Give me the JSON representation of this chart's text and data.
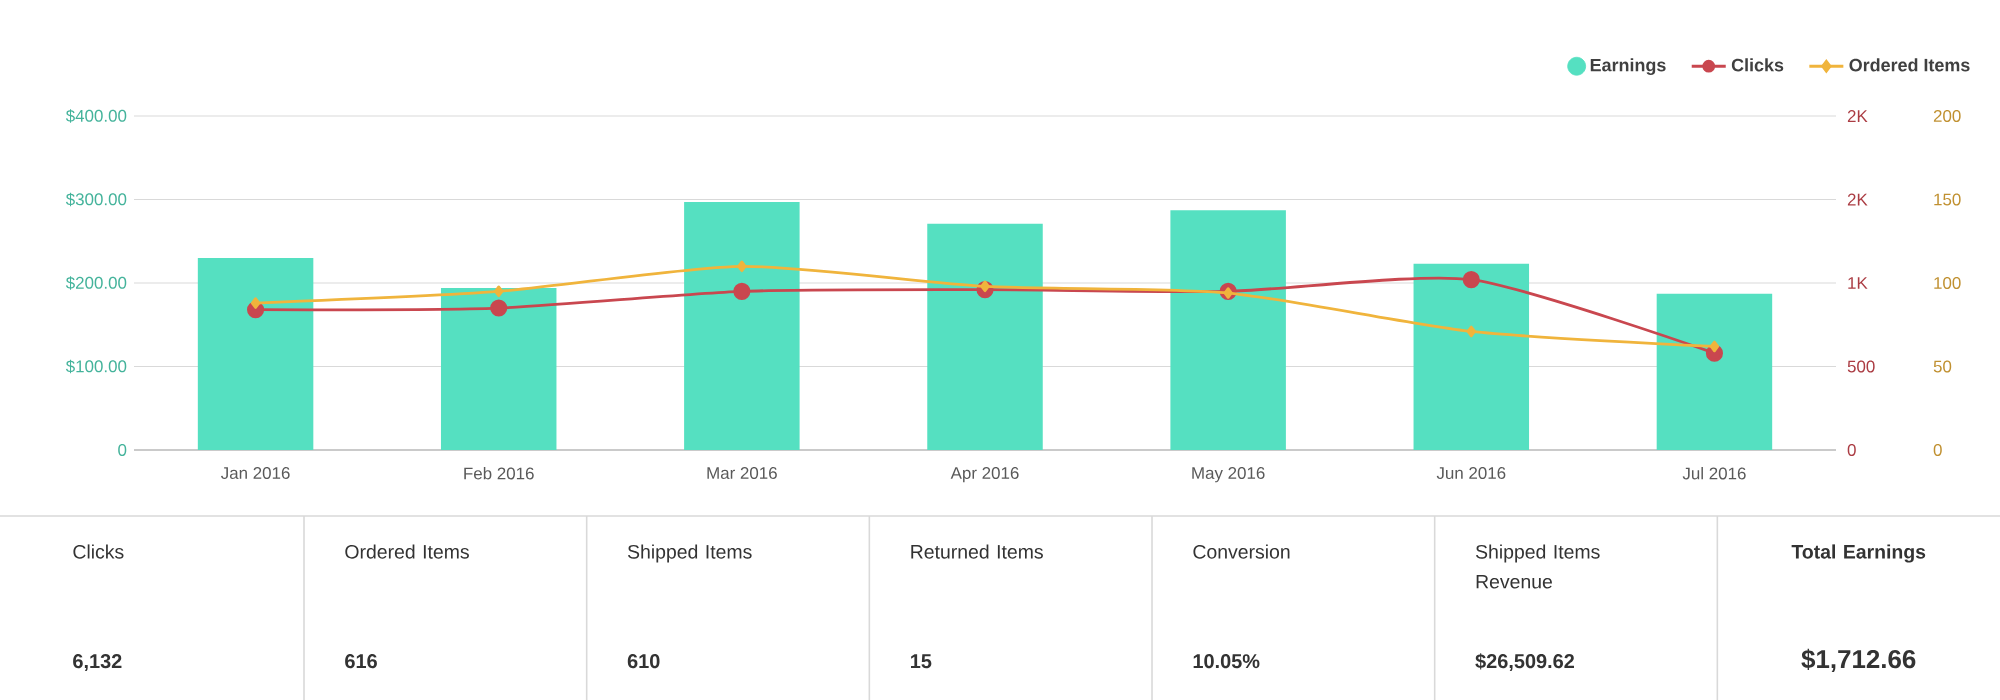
{
  "chart_data": [
    {
      "type": "bar",
      "categories": [
        "Jan 2016",
        "Feb 2016",
        "Mar 2016",
        "Apr 2016",
        "May 2016",
        "Jun 2016",
        "Jul 2016"
      ],
      "series": [
        {
          "name": "Earnings",
          "color": "#55e0c1",
          "values": [
            230,
            194,
            297,
            271,
            287,
            223,
            187
          ]
        },
        {
          "name": "Clicks",
          "type": "line",
          "axis": "y2",
          "marker": "circle",
          "color": "#c9474f",
          "values": [
            840,
            850,
            950,
            960,
            950,
            1020,
            580
          ]
        },
        {
          "name": "Ordered Items",
          "type": "line",
          "axis": "y3",
          "marker": "diamond",
          "color": "#f0b43c",
          "values": [
            88,
            95,
            110,
            98,
            94,
            71,
            62
          ]
        }
      ],
      "ylim": [
        0,
        400
      ],
      "yticks": [
        0,
        {
          "value": 100,
          "label": "$100.00"
        },
        {
          "value": 200,
          "label": "$200.00"
        },
        {
          "value": 300,
          "label": "$300.00"
        },
        {
          "value": 400,
          "label": "$400.00"
        }
      ],
      "y2lim": [
        0,
        2000
      ],
      "y2ticks": [
        0,
        500,
        {
          "value": 1000,
          "label": "1K"
        },
        {
          "value": 1500,
          "label": "2K"
        },
        {
          "value": 2000,
          "label": "2K"
        }
      ],
      "y3lim": [
        0,
        200
      ],
      "y3ticks": [
        0,
        50,
        100,
        150,
        200
      ],
      "grid": "y",
      "legend": "top right"
    },
    {
      "type": "other",
      "annotations": [
        "Clicks",
        "6,132",
        "Ordered Items",
        "616",
        "Shipped Items",
        "610",
        "Returned Items",
        "15",
        "Conversion",
        "10.05%",
        "Shipped Items Revenue",
        "$26,509.62",
        "Total Earnings",
        "$1,712.66"
      ]
    }
  ]
}
